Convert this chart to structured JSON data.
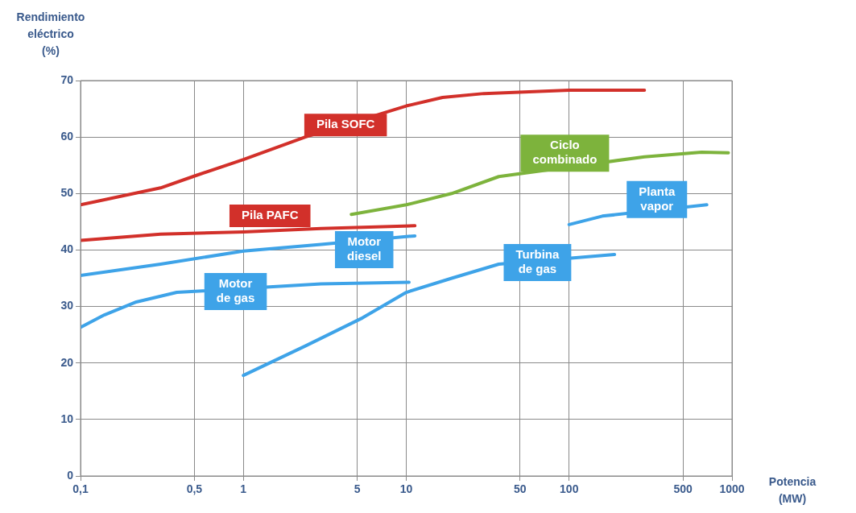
{
  "chart_data": {
    "type": "line",
    "xlabel": "Potencia (MW)",
    "ylabel": "Rendimiento eléctrico (%)",
    "log": "x",
    "grid": true,
    "legend": false,
    "marker": "none",
    "line_style": "solid",
    "xlim": [
      0.1,
      1000
    ],
    "xticks": [
      {
        "value": 0.1,
        "label": "0,1"
      },
      {
        "value": 0.5,
        "label": "0,5"
      },
      1,
      5,
      10,
      50,
      100,
      500,
      1000
    ],
    "ylim": [
      0,
      70
    ],
    "yticks": [
      0,
      10,
      20,
      30,
      40,
      50,
      60,
      70
    ],
    "series": [
      {
        "name": "Pila SOFC",
        "color": "#d2302a",
        "x": [
          0.1,
          0.31,
          0.49,
          1,
          2.4,
          10,
          16.7,
          30,
          100,
          290
        ],
        "values": [
          48,
          51,
          53,
          56,
          60,
          65.5,
          67,
          67.7,
          68.3,
          68.3
        ]
      },
      {
        "name": "Pila PAFC",
        "color": "#d2302a",
        "x": [
          0.1,
          0.31,
          1,
          3,
          11.3
        ],
        "values": [
          41.7,
          42.8,
          43.2,
          43.8,
          44.3
        ]
      },
      {
        "name": "Ciclo combinado",
        "color": "#7db33c",
        "x": [
          4.6,
          10,
          19,
          37,
          290,
          650,
          950
        ],
        "values": [
          46.3,
          48,
          50,
          53,
          56.5,
          57.3,
          57.2
        ]
      },
      {
        "name": "Motor diesel",
        "color": "#3ea3e8",
        "x": [
          0.1,
          0.31,
          1,
          3,
          11.3
        ],
        "values": [
          35.5,
          37.5,
          39.8,
          41,
          42.5
        ]
      },
      {
        "name": "Motor de gas",
        "color": "#3ea3e8",
        "x": [
          0.1,
          0.14,
          0.22,
          0.39,
          3,
          10.4
        ],
        "values": [
          26.3,
          28.5,
          30.8,
          32.5,
          34,
          34.3
        ]
      },
      {
        "name": "Turbina de gas",
        "color": "#3ea3e8",
        "x": [
          1,
          2.4,
          5.4,
          10,
          19,
          37,
          190
        ],
        "values": [
          17.8,
          23,
          28,
          32.5,
          35,
          37.5,
          39.2
        ]
      },
      {
        "name": "Planta vapor",
        "color": "#3ea3e8",
        "x": [
          100,
          160,
          700
        ],
        "values": [
          44.5,
          46,
          48
        ]
      }
    ]
  }
}
